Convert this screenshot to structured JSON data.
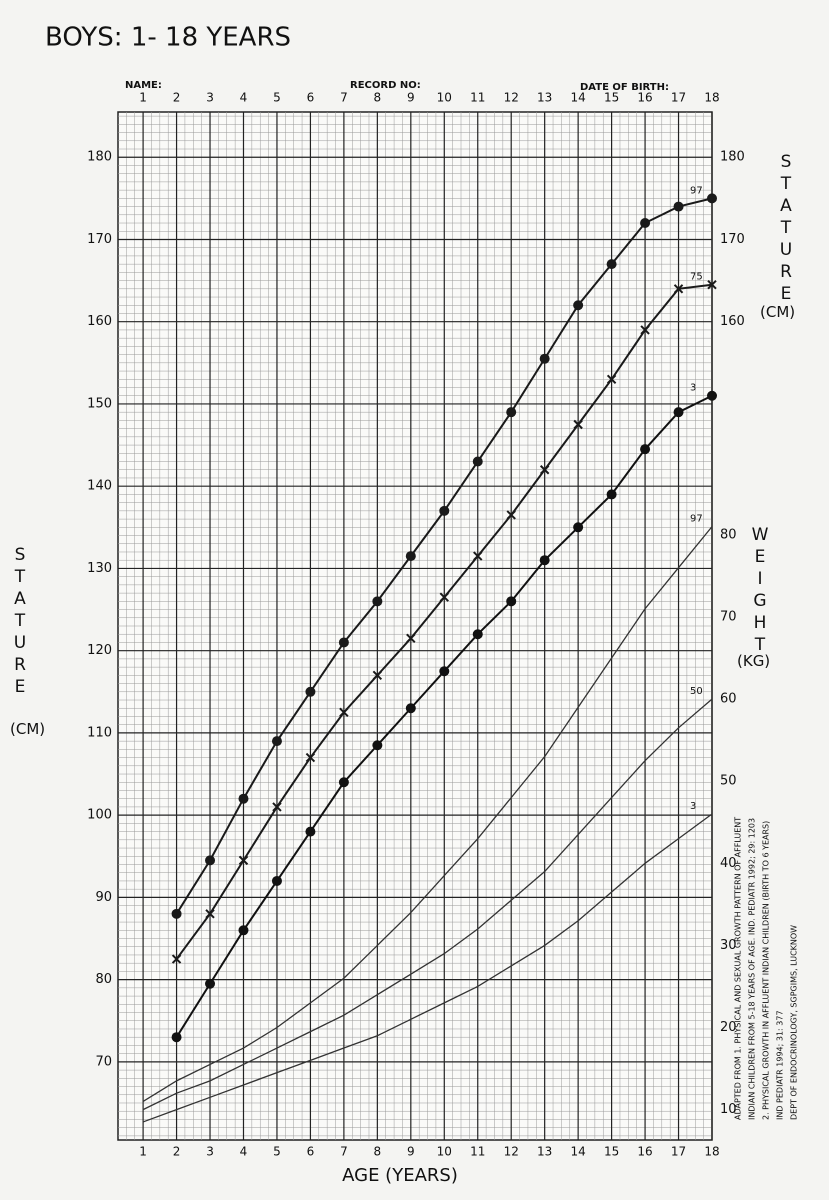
{
  "chart_data": {
    "type": "line",
    "title": "BOYS: 1- 18 YEARS",
    "header_fields": [
      "NAME:",
      "RECORD NO:",
      "DATE OF BIRTH:"
    ],
    "x_label": "AGE (YEARS)",
    "y_label": "STATURE",
    "y_unit": "(CM)",
    "y2_label": "WEIGHT",
    "y2_unit": "(KG)",
    "notes": [
      "ADAPTED FROM 1. PHYSICAL AND SEXUAL GROWTH PATTERN OF AFFLUENT",
      "INDIAN CHILDREN FROM 5-18 YEARS OF AGE. IND. PEDIATR 1992; 29: 1203",
      "2. PHYSICAL GROWTH IN AFFLUENT INDIAN CHILDREN (BIRTH TO 6 YEARS)",
      "IND PEDIATR 1994; 31: 377",
      "DEPT OF ENDOCRINOLOGY, SGPGIMS, LUCKNOW"
    ],
    "x": [
      1,
      2,
      3,
      4,
      5,
      6,
      7,
      8,
      9,
      10,
      11,
      12,
      13,
      14,
      15,
      16,
      17,
      18
    ],
    "xlim": [
      0.25,
      18
    ],
    "xticks": [
      1,
      2,
      3,
      4,
      5,
      6,
      7,
      8,
      9,
      10,
      11,
      12,
      13,
      14,
      15,
      16,
      17,
      18
    ],
    "ylim": [
      60.5,
      185.5
    ],
    "yticks": [
      70,
      80,
      90,
      100,
      110,
      120,
      130,
      140,
      150,
      160,
      170,
      180
    ],
    "right_yticks": [
      160,
      170,
      180
    ],
    "y2lim": [
      6.3,
      131.5
    ],
    "y2ticks": [
      10,
      20,
      30,
      40,
      50,
      60,
      70,
      80
    ],
    "grid": true,
    "series": [
      {
        "name": "97",
        "color": "#1a1a1a",
        "marker": "dot",
        "values": [
          null,
          88,
          94.5,
          102,
          109,
          115,
          121,
          126,
          131.5,
          137,
          143,
          149,
          155.5,
          162,
          167,
          172,
          174,
          175
        ]
      },
      {
        "name": "75",
        "color": "#1a1a1a",
        "marker": "x",
        "values": [
          null,
          82.5,
          88,
          94.5,
          101,
          107,
          112.5,
          117,
          121.5,
          126.5,
          131.5,
          136.5,
          142,
          147.5,
          153,
          159,
          164,
          164.5
        ]
      },
      {
        "name": "3",
        "color": "#111111",
        "marker": "dot",
        "values": [
          null,
          73,
          79.5,
          86,
          92,
          98,
          104,
          108.5,
          113,
          117.5,
          122,
          126,
          131,
          135,
          139,
          144.5,
          149,
          151
        ]
      },
      {
        "name": "97",
        "color": "#333333",
        "marker": "none",
        "axis": "y2",
        "values": [
          11,
          13.5,
          15.5,
          17.5,
          20,
          23,
          26,
          30,
          34,
          38.5,
          43,
          48,
          53,
          59,
          65,
          71,
          76,
          81
        ]
      },
      {
        "name": "50",
        "color": "#333333",
        "marker": "none",
        "axis": "y2",
        "values": [
          10,
          12,
          13.5,
          15.5,
          17.5,
          19.5,
          21.5,
          24,
          26.5,
          29,
          32,
          35.5,
          39,
          43.5,
          48,
          52.5,
          56.5,
          60
        ]
      },
      {
        "name": "3",
        "color": "#333333",
        "marker": "none",
        "axis": "y2",
        "values": [
          8.5,
          10,
          11.5,
          13,
          14.5,
          16,
          17.5,
          19,
          21,
          23,
          25,
          27.5,
          30,
          33,
          36.5,
          40,
          43,
          46
        ]
      }
    ]
  }
}
